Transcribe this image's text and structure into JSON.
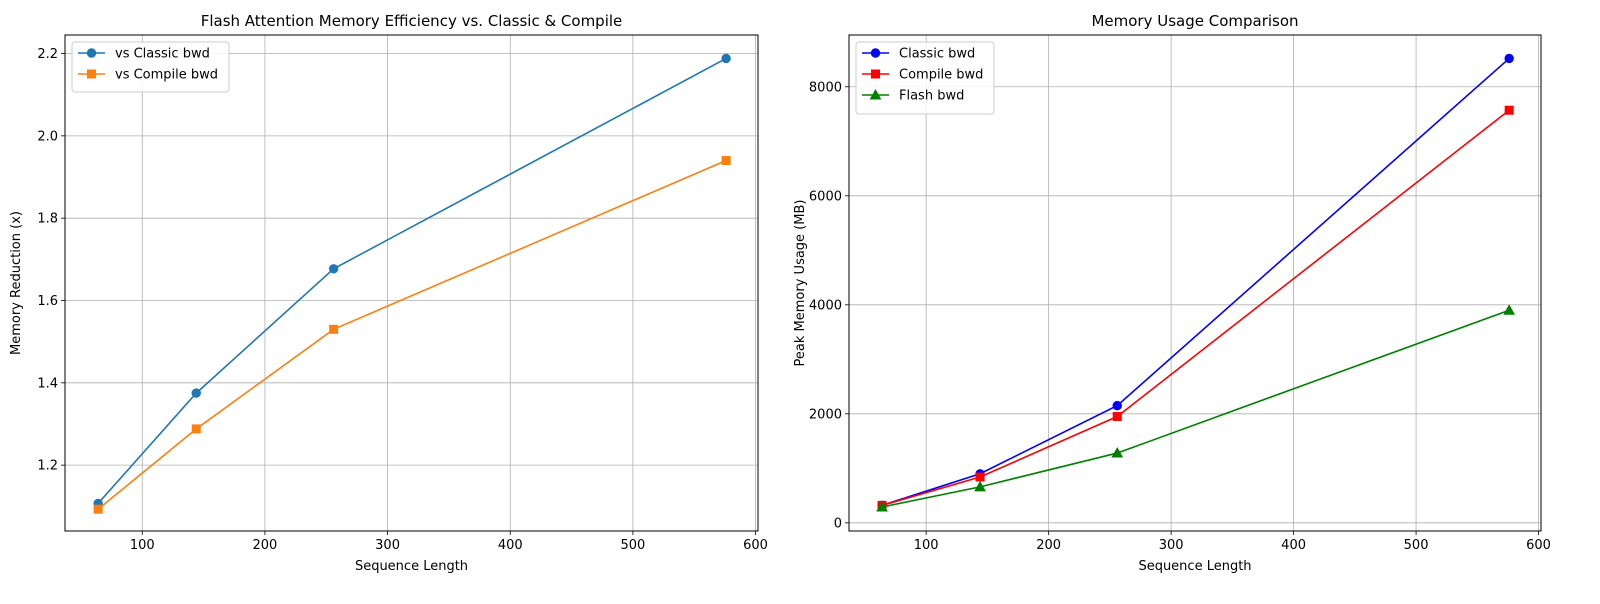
{
  "chart_data": [
    {
      "type": "line",
      "title": "Flash Attention Memory Efficiency vs. Classic & Compile",
      "xlabel": "Sequence Length",
      "ylabel": "Memory Reduction (x)",
      "xlim": [
        37,
        602
      ],
      "ylim": [
        1.04,
        2.245
      ],
      "xticks": [
        100,
        200,
        300,
        400,
        500,
        600
      ],
      "yticks": [
        1.2,
        1.4,
        1.6,
        1.8,
        2.0,
        2.2
      ],
      "ytick_format": 1,
      "grid": true,
      "legend_position": "top-left",
      "series": [
        {
          "name": "vs Classic bwd",
          "color": "#1f77b4",
          "marker": "circle",
          "x": [
            64,
            144,
            256,
            576
          ],
          "y": [
            1.107,
            1.375,
            1.677,
            2.188
          ]
        },
        {
          "name": "vs Compile bwd",
          "color": "#ff7f0e",
          "marker": "square",
          "x": [
            64,
            144,
            256,
            576
          ],
          "y": [
            1.093,
            1.288,
            1.53,
            1.94
          ]
        }
      ]
    },
    {
      "type": "line",
      "title": "Memory Usage Comparison",
      "xlabel": "Sequence Length",
      "ylabel": "Peak Memory Usage (MB)",
      "xlim": [
        37,
        602
      ],
      "ylim": [
        -150,
        8950
      ],
      "xticks": [
        100,
        200,
        300,
        400,
        500,
        600
      ],
      "yticks": [
        0,
        2000,
        4000,
        6000,
        8000
      ],
      "ytick_format": 0,
      "grid": true,
      "legend_position": "top-left",
      "series": [
        {
          "name": "Classic bwd",
          "color": "#0000ff",
          "marker": "circle",
          "x": [
            64,
            144,
            256,
            576
          ],
          "y": [
            320,
            900,
            2150,
            8520
          ]
        },
        {
          "name": "Compile bwd",
          "color": "#ff0000",
          "marker": "square",
          "x": [
            64,
            144,
            256,
            576
          ],
          "y": [
            320,
            840,
            1950,
            7570
          ]
        },
        {
          "name": "Flash bwd",
          "color": "#008000",
          "marker": "triangle",
          "x": [
            64,
            144,
            256,
            576
          ],
          "y": [
            290,
            660,
            1280,
            3900
          ]
        }
      ]
    }
  ]
}
